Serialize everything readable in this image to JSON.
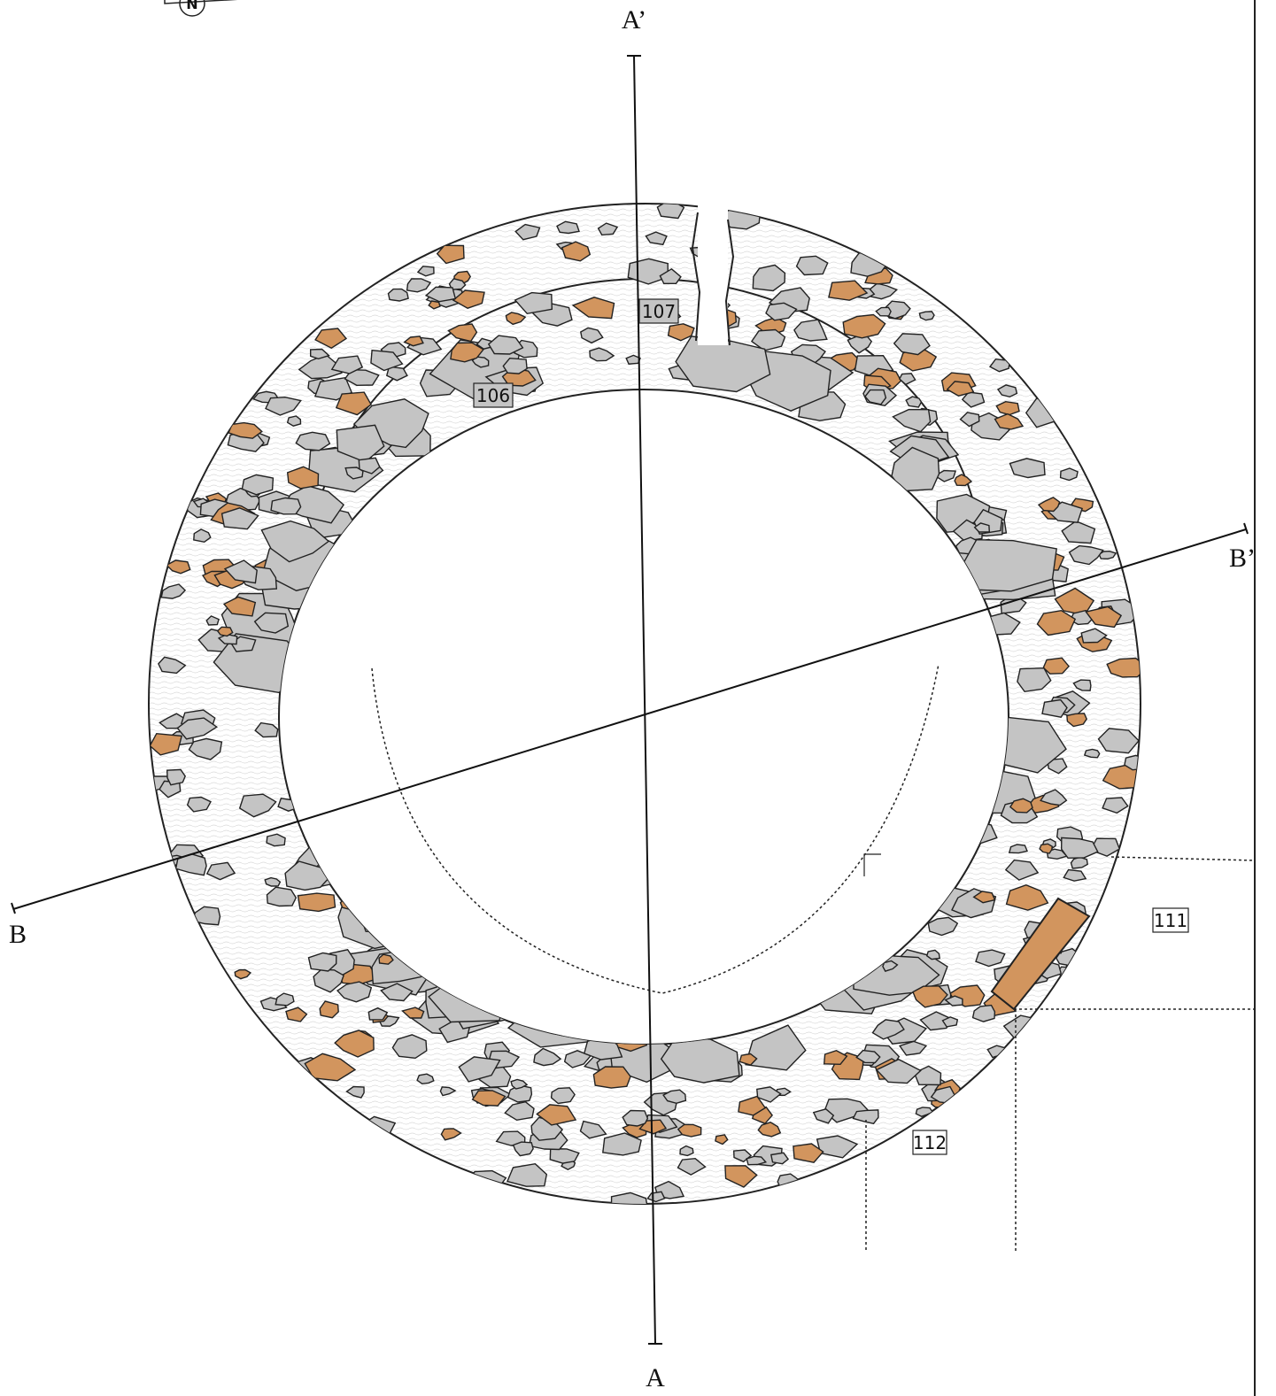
{
  "north": "N",
  "sections": {
    "a_start": "A",
    "a_end": "A’",
    "b_start": "B",
    "b_end": "B’"
  },
  "contexts": [
    "107",
    "106",
    "111",
    "112"
  ]
}
